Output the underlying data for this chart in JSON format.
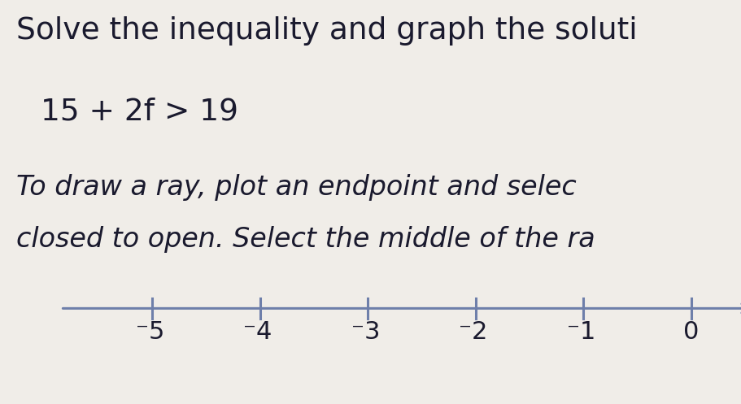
{
  "title_line1": "Solve the inequality and graph the soluti",
  "equation": "15 + 2f > 19",
  "instruction_line1": "To draw a ray, plot an endpoint and selec",
  "instruction_line2": "closed to open. Select the middle of the ra",
  "background_color": "#f0ede8",
  "text_color": "#1a1a2e",
  "tick_positions": [
    -5,
    -4,
    -3,
    -2,
    -1,
    0
  ],
  "x_min": -6.0,
  "x_max": 0.6,
  "title_fontsize": 27,
  "equation_fontsize": 27,
  "instruction_fontsize": 24,
  "tick_label_fontsize": 22,
  "line_color": "#6e7faa",
  "tick_color": "#6e7faa"
}
